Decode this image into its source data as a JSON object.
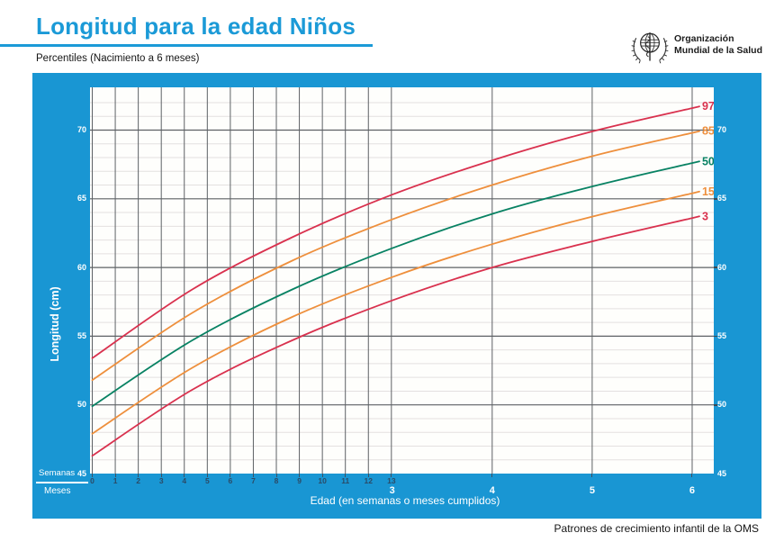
{
  "page": {
    "title": "Longitud para la edad Niños",
    "subtitle": "Percentiles (Nacimiento a 6 meses)",
    "footer": "Patrones de crecimiento infantil de la OMS"
  },
  "logo": {
    "icon": "who-emblem-icon",
    "org_line1": "Organización",
    "org_line2": "Mundial de la Salud"
  },
  "colors": {
    "panel_blue": "#1996d3",
    "title_blue": "#1b9ad7",
    "percentile_red": "#d9314e",
    "percentile_orange": "#ee8f3c",
    "percentile_green": "#088263",
    "grid_major": "#5d6165",
    "grid_minor": "#e4e0e0",
    "week_label_navy": "#2b4a66"
  },
  "chart_data": {
    "type": "line",
    "title": "Longitud para la edad Niños — Percentiles (Nacimiento a 6 meses)",
    "xlabel": "Edad (en semanas o meses cumplidos)",
    "ylabel": "Longitud (cm)",
    "x_unit_rows": {
      "weeks_label": "Semanas",
      "months_label": "Meses"
    },
    "x_weeks_ticks": [
      0,
      1,
      2,
      3,
      4,
      5,
      6,
      7,
      8,
      9,
      10,
      11,
      12,
      13
    ],
    "x_months_ticks": [
      3,
      4,
      5,
      6
    ],
    "y_ticks": [
      45,
      50,
      55,
      60,
      65,
      70
    ],
    "ylim": [
      45,
      73
    ],
    "xlim_months": [
      0,
      6.22
    ],
    "grid": "on",
    "legend_position": "right-edge-of-curves",
    "categories_months": [
      0,
      1,
      2,
      3,
      4,
      5,
      6
    ],
    "series": [
      {
        "label": "97",
        "color": "#d9314e",
        "values": [
          53.4,
          58.4,
          62.2,
          65.3,
          67.8,
          69.9,
          71.6
        ]
      },
      {
        "label": "85",
        "color": "#ee8f3c",
        "values": [
          51.8,
          56.7,
          60.5,
          63.5,
          66.0,
          68.1,
          69.8
        ]
      },
      {
        "label": "50",
        "color": "#088263",
        "values": [
          49.9,
          54.7,
          58.4,
          61.4,
          63.9,
          65.9,
          67.6
        ]
      },
      {
        "label": "15",
        "color": "#ee8f3c",
        "values": [
          47.9,
          52.7,
          56.4,
          59.3,
          61.7,
          63.7,
          65.4
        ]
      },
      {
        "label": "3",
        "color": "#d9314e",
        "values": [
          46.3,
          51.1,
          54.7,
          57.6,
          60.0,
          61.9,
          63.6
        ]
      }
    ]
  }
}
